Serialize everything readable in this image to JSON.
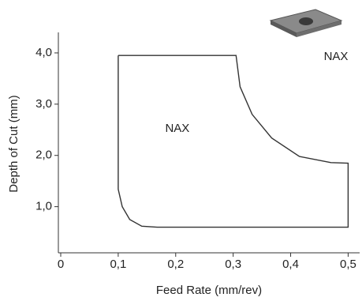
{
  "chart_data": {
    "type": "area",
    "x_label": "Feed Rate (mm/rev)",
    "y_label": "Depth of Cut (mm)",
    "series": [
      {
        "name": "NAX",
        "color": "#333333",
        "x": [
          0.1,
          0.305,
          0.312,
          0.333,
          0.367,
          0.415,
          0.47,
          0.5,
          0.5,
          0.168,
          0.141,
          0.12,
          0.107,
          0.1,
          0.1
        ],
        "values": [
          3.95,
          3.95,
          3.34,
          2.8,
          2.34,
          1.98,
          1.86,
          1.85,
          0.6,
          0.6,
          0.62,
          0.75,
          1.0,
          1.34,
          3.95
        ]
      }
    ],
    "xlim": [
      0,
      0.52
    ],
    "ylim": [
      0.1,
      4.4
    ],
    "xticks": [
      0,
      {
        "value": 0.1,
        "label": "0,1"
      },
      {
        "value": 0.2,
        "label": "0,2"
      },
      {
        "value": 0.3,
        "label": "0,3"
      },
      {
        "value": 0.4,
        "label": "0,4"
      },
      {
        "value": 0.5,
        "label": "0,5"
      }
    ],
    "yticks": [
      {
        "value": 1,
        "label": "1,0"
      },
      {
        "value": 2,
        "label": "2,0"
      },
      {
        "value": 3,
        "label": "3,0"
      },
      {
        "value": 4,
        "label": "4,0"
      }
    ],
    "grid": false
  }
}
